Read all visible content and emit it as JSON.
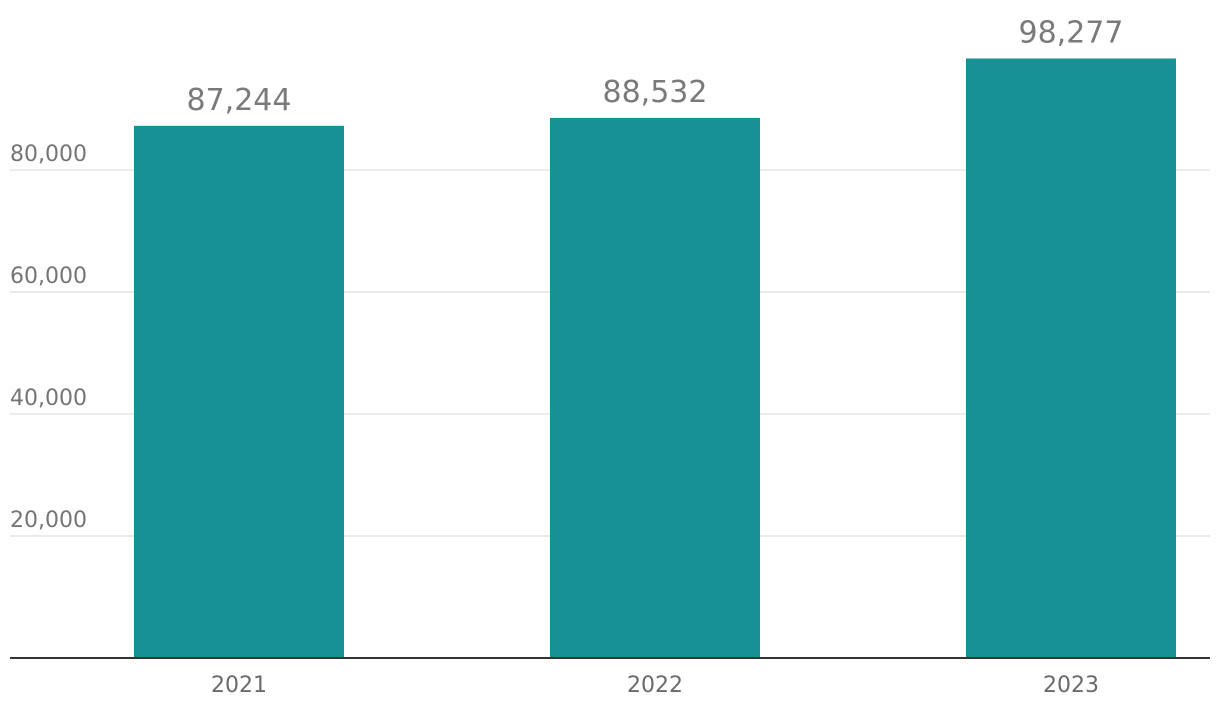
{
  "chart_data": {
    "type": "bar",
    "title": "",
    "xlabel": "",
    "ylabel": "",
    "categories": [
      "2021",
      "2022",
      "2023"
    ],
    "values": [
      87244,
      88532,
      98277
    ],
    "value_labels": [
      "87,244",
      "88,532",
      "98,277"
    ],
    "ylim": [
      0,
      100000
    ],
    "yticks": [
      20000,
      40000,
      60000,
      80000
    ],
    "ytick_labels": [
      "20,000",
      "40,000",
      "60,000",
      "80,000"
    ],
    "grid": true,
    "legend": "none",
    "bar_color": "#189195"
  }
}
